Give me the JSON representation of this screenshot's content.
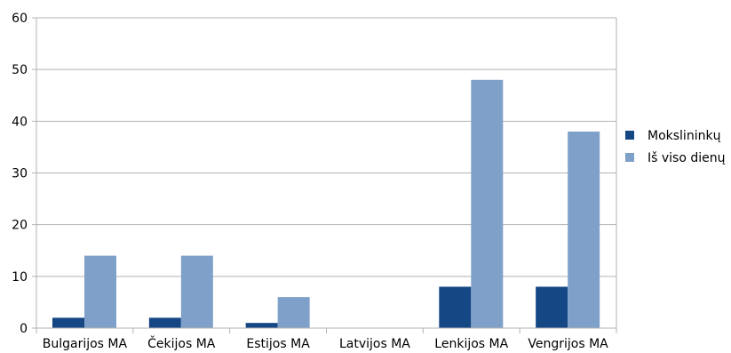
{
  "chart_data": {
    "type": "bar",
    "title": "",
    "xlabel": "",
    "ylabel": "",
    "ylim": [
      0,
      60
    ],
    "yticks": [
      0,
      10,
      20,
      30,
      40,
      50,
      60
    ],
    "grid": true,
    "legend_position": "right",
    "categories": [
      "Bulgarijos MA",
      "Čekijos MA",
      "Estijos MA",
      "Latvijos MA",
      "Lenkijos MA",
      "Vengrijos MA"
    ],
    "series": [
      {
        "name": "Mokslininkų",
        "color": "#154784",
        "values": [
          2,
          2,
          1,
          0,
          8,
          8
        ]
      },
      {
        "name": "Iš viso dienų",
        "color": "#7fa1c9",
        "values": [
          14,
          14,
          6,
          0,
          48,
          38
        ]
      }
    ]
  }
}
